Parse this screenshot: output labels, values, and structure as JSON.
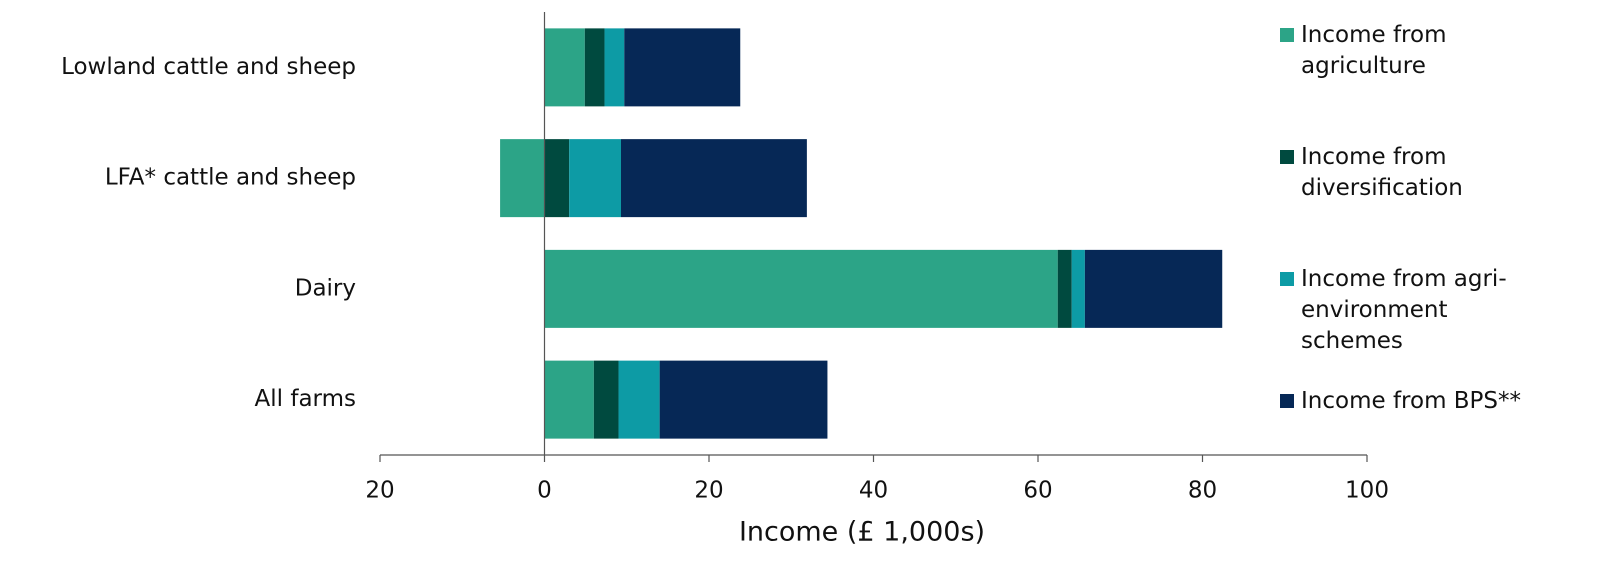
{
  "chart_data": {
    "type": "stacked-barh",
    "xlabel": "Income (£ 1,000s)",
    "categories": [
      "Lowland cattle and sheep",
      "LFA* cattle and sheep",
      "Dairy",
      "All farms"
    ],
    "series": [
      {
        "name": "Income from agriculture",
        "color": "#2ca487",
        "values": [
          4.9,
          -5.4,
          62.4,
          6.0
        ]
      },
      {
        "name": "Income from diversification",
        "color": "#004a3f",
        "values": [
          2.4,
          3.0,
          1.7,
          3.0
        ]
      },
      {
        "name": "Income from agri-environment schemes",
        "color": "#0d9ba5",
        "values": [
          2.4,
          6.3,
          1.6,
          5.0
        ]
      },
      {
        "name": "Income from BPS**",
        "color": "#062856",
        "values": [
          14.1,
          22.6,
          16.7,
          20.4
        ]
      }
    ],
    "xlim": [
      -20,
      100
    ],
    "xticks": [
      {
        "value": -20,
        "label": "20"
      },
      0,
      20,
      40,
      60,
      80,
      100
    ],
    "legend": "right"
  }
}
